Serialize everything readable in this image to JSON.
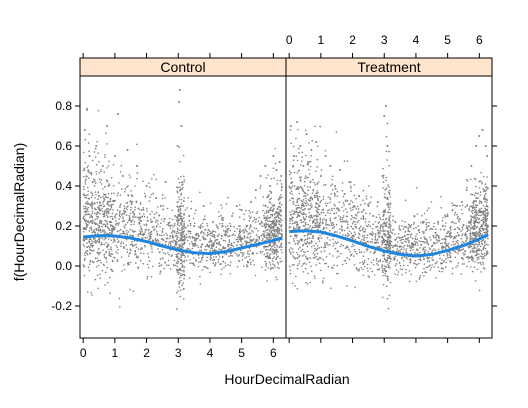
{
  "chart_data": {
    "type": "scatter",
    "xlabel": "HourDecimalRadian",
    "ylabel": "f(HourDecimalRadian)",
    "xlim": [
      -0.1,
      6.4
    ],
    "ylim": [
      -0.36,
      0.95
    ],
    "x_ticks": [
      0,
      1,
      2,
      3,
      4,
      5,
      6
    ],
    "y_ticks": [
      -0.2,
      0.0,
      0.2,
      0.4,
      0.6,
      0.8
    ],
    "x_tick_labels": [
      "0",
      "1",
      "2",
      "3",
      "4",
      "5",
      "6"
    ],
    "y_tick_labels": [
      "-0.2",
      "0.0",
      "0.2",
      "0.4",
      "0.6",
      "0.8"
    ],
    "point_color": "#808080",
    "smooth_color": "#1f86e0",
    "strip_color": "#ffe5cc",
    "panels": [
      {
        "name": "Control",
        "smooth": {
          "x": [
            0.0,
            0.5,
            1.0,
            1.5,
            2.0,
            2.5,
            3.0,
            3.5,
            4.0,
            4.5,
            5.0,
            5.5,
            6.0,
            6.28
          ],
          "y": [
            0.145,
            0.152,
            0.15,
            0.14,
            0.122,
            0.1,
            0.08,
            0.066,
            0.062,
            0.072,
            0.09,
            0.108,
            0.128,
            0.14
          ]
        },
        "scatter_x": [
          0.05,
          0.12,
          0.2,
          0.3,
          0.41,
          0.5,
          0.62,
          0.75,
          0.88,
          1.0,
          1.1,
          1.25,
          1.4,
          1.55,
          1.7,
          1.85,
          2.0,
          2.15,
          2.3,
          2.45,
          2.6,
          2.75,
          2.9,
          2.98,
          3.02,
          3.05,
          3.1,
          3.2,
          3.35,
          3.5,
          3.65,
          3.8,
          3.95,
          4.1,
          4.25,
          4.4,
          4.55,
          4.7,
          4.85,
          5.0,
          5.15,
          5.3,
          5.45,
          5.6,
          5.75,
          5.9,
          6.0,
          6.1,
          6.2,
          6.25
        ],
        "scatter_y": [
          0.68,
          0.78,
          0.55,
          0.42,
          0.6,
          0.35,
          0.5,
          0.7,
          0.3,
          0.55,
          0.76,
          0.45,
          0.58,
          0.35,
          0.5,
          0.28,
          0.4,
          0.22,
          0.34,
          0.3,
          0.42,
          0.2,
          0.25,
          0.6,
          0.82,
          0.88,
          0.7,
          0.15,
          0.25,
          0.2,
          0.15,
          0.3,
          0.18,
          0.22,
          0.15,
          0.2,
          0.18,
          0.25,
          0.3,
          0.28,
          0.2,
          0.32,
          0.38,
          0.45,
          0.5,
          0.4,
          0.55,
          0.48,
          0.52,
          0.45
        ]
      },
      {
        "name": "Treatment",
        "smooth": {
          "x": [
            0.0,
            0.5,
            1.0,
            1.5,
            2.0,
            2.5,
            3.0,
            3.5,
            4.0,
            4.5,
            5.0,
            5.5,
            6.0,
            6.28
          ],
          "y": [
            0.172,
            0.176,
            0.17,
            0.15,
            0.125,
            0.098,
            0.075,
            0.058,
            0.05,
            0.058,
            0.078,
            0.102,
            0.135,
            0.158
          ]
        },
        "scatter_x": [
          0.05,
          0.15,
          0.25,
          0.35,
          0.45,
          0.55,
          0.7,
          0.85,
          1.0,
          1.15,
          1.3,
          1.45,
          1.6,
          1.75,
          1.9,
          2.05,
          2.2,
          2.35,
          2.5,
          2.65,
          2.8,
          2.95,
          3.0,
          3.05,
          3.1,
          3.2,
          3.35,
          3.5,
          3.65,
          3.8,
          3.95,
          4.1,
          4.25,
          4.4,
          4.55,
          4.7,
          4.85,
          5.0,
          5.15,
          5.3,
          5.45,
          5.6,
          5.75,
          5.9,
          6.0,
          6.1,
          6.2,
          6.25
        ],
        "scatter_y": [
          0.7,
          0.55,
          0.72,
          0.6,
          0.5,
          0.66,
          0.58,
          0.62,
          0.45,
          0.55,
          0.5,
          0.4,
          0.48,
          0.36,
          0.42,
          0.3,
          0.35,
          0.28,
          0.3,
          0.25,
          0.32,
          0.45,
          0.75,
          0.8,
          0.6,
          0.2,
          0.22,
          0.18,
          0.15,
          0.2,
          0.25,
          0.18,
          0.22,
          0.2,
          0.15,
          0.22,
          0.2,
          0.25,
          0.28,
          0.3,
          0.32,
          0.38,
          0.5,
          0.6,
          0.65,
          0.68,
          0.6,
          0.55
        ]
      }
    ]
  }
}
